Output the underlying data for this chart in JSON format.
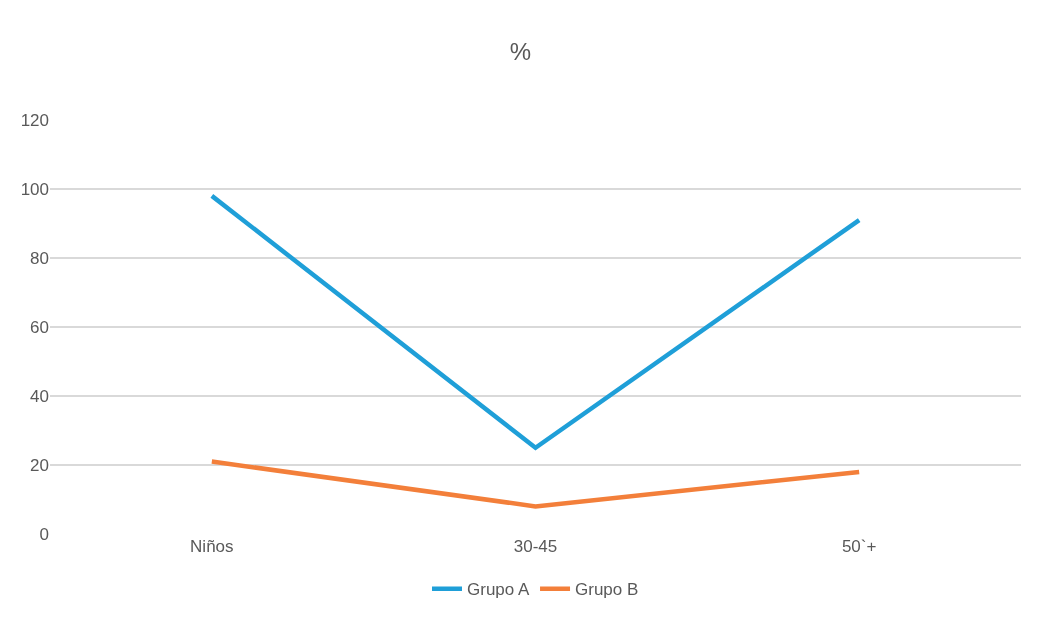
{
  "chart_data": {
    "type": "line",
    "title": "%",
    "categories": [
      "Niños",
      "30-45",
      "50`+"
    ],
    "series": [
      {
        "name": "Grupo A",
        "color": "#1f9fd8",
        "values": [
          98,
          25,
          91
        ]
      },
      {
        "name": "Grupo B",
        "color": "#f37f3a",
        "values": [
          21,
          8,
          18
        ]
      }
    ],
    "ylim": [
      0,
      120
    ],
    "yticks": [
      0,
      20,
      40,
      60,
      80,
      100,
      120
    ],
    "grid": "y",
    "legend": "bottom",
    "marker": "none",
    "line_style": "solid"
  }
}
